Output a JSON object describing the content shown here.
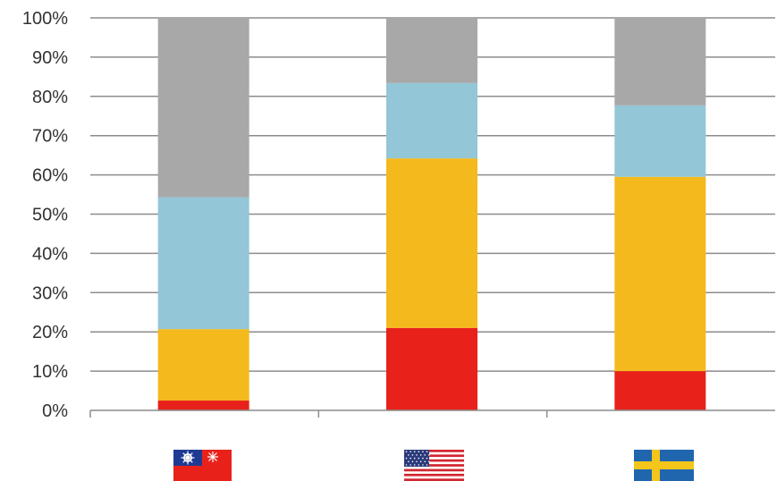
{
  "chart_data": {
    "type": "bar",
    "stacked": true,
    "title": "",
    "xlabel": "",
    "ylabel": "",
    "ylim": [
      0,
      100
    ],
    "yticks": [
      "0%",
      "10%",
      "20%",
      "30%",
      "40%",
      "50%",
      "60%",
      "70%",
      "80%",
      "90%",
      "100%"
    ],
    "grid": true,
    "legend": "none",
    "categories": [
      "taiwan-flag",
      "usa-flag",
      "sweden-flag"
    ],
    "series": [
      {
        "color": "#e8221b",
        "values": [
          2.5,
          21,
          10
        ]
      },
      {
        "color": "#f4b91c",
        "values": [
          18.2,
          43.2,
          49.5
        ]
      },
      {
        "color": "#93c6d6",
        "values": [
          33.6,
          19.2,
          18.2
        ]
      },
      {
        "color": "#a8a8a8",
        "values": [
          45.7,
          16.6,
          22.3
        ]
      }
    ]
  },
  "colors": {
    "grid": "#8c8c8c",
    "axis": "#8c8c8c",
    "text": "#333333"
  }
}
